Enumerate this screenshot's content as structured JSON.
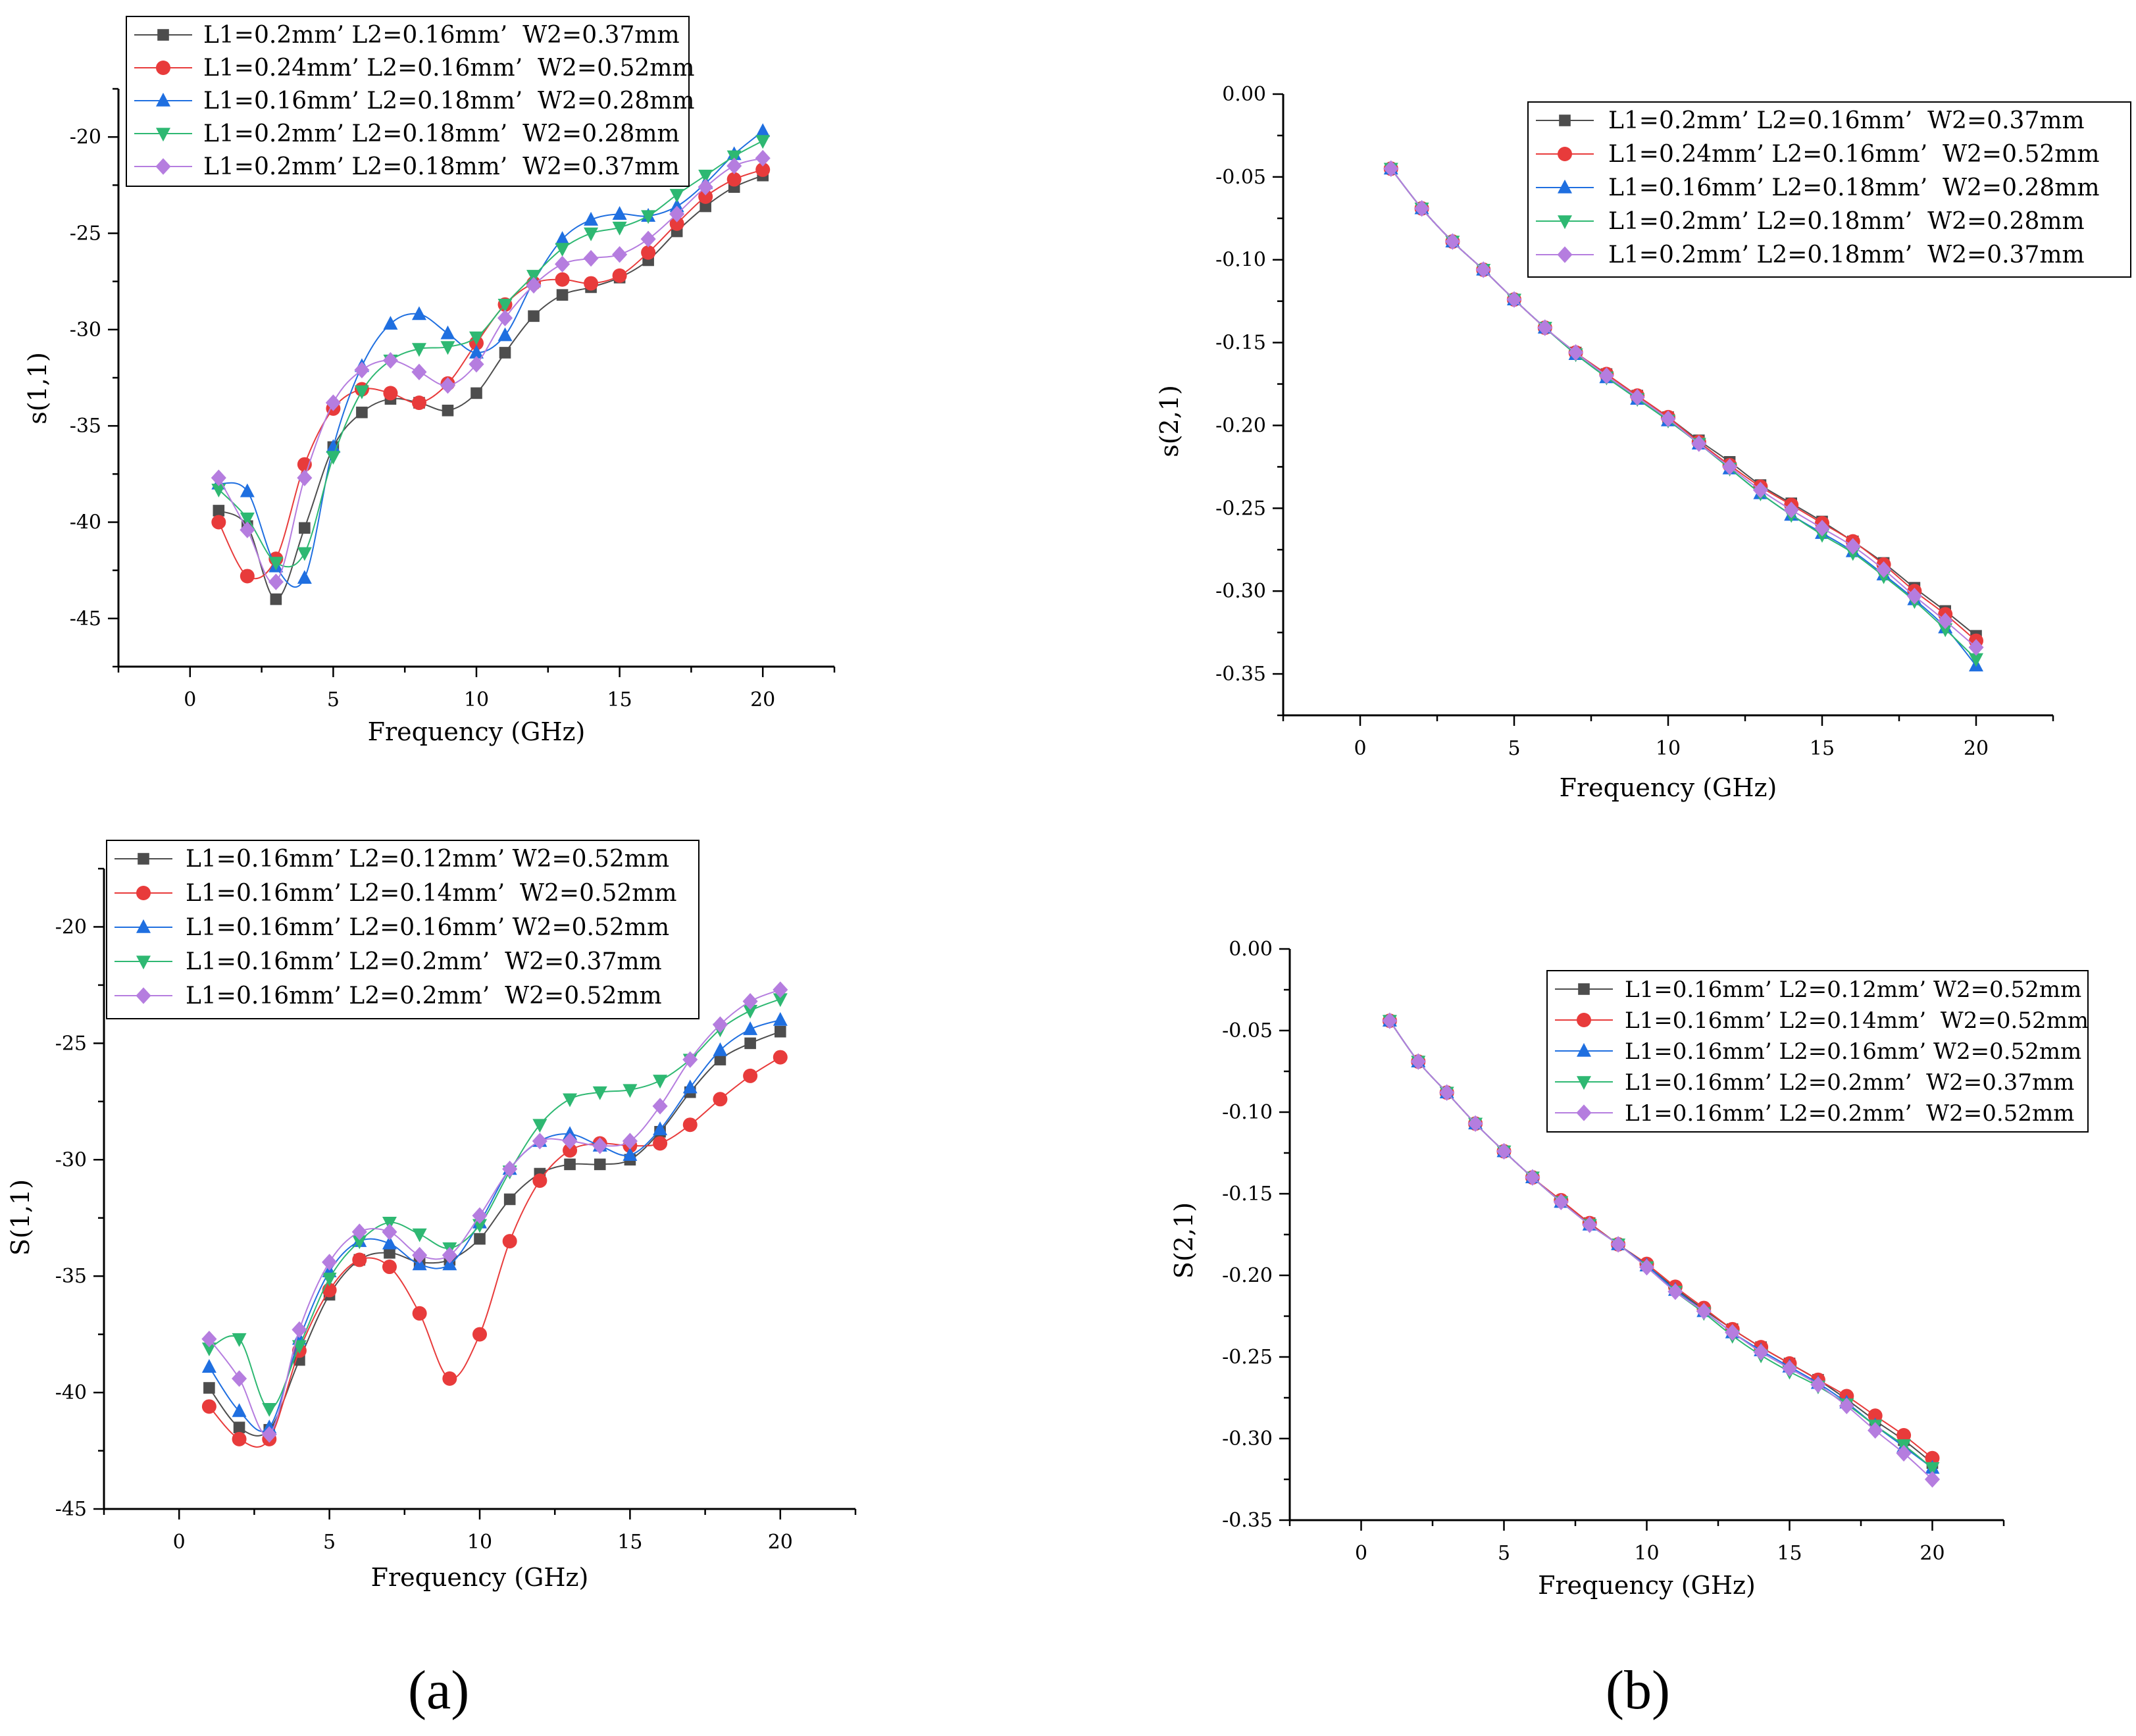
{
  "figure": {
    "label_a": "(a)",
    "label_b": "(b)"
  },
  "chart_data": [
    {
      "type": "line",
      "xlabel": "Frequency (GHz)",
      "ylabel": "s(1,1)",
      "xlim": [
        -2.5,
        22.5
      ],
      "ylim": [
        -47.5,
        -17.5
      ],
      "xticks": [
        0,
        5,
        10,
        15,
        20
      ],
      "yticks": [
        -45,
        -40,
        -35,
        -30,
        -25,
        -20
      ],
      "ytick_labels": [
        "-45",
        "-40",
        "-35",
        "-30",
        "-25",
        "-20"
      ],
      "legend_position": "top-left",
      "x": [
        1,
        2,
        3,
        4,
        5,
        6,
        7,
        8,
        9,
        10,
        11,
        12,
        13,
        14,
        15,
        16,
        17,
        18,
        19,
        20
      ],
      "series": [
        {
          "name": "L1=0.2mm’ L2=0.16mm’  W2=0.37mm",
          "color": "#4d4d4d",
          "marker": "square",
          "values": [
            -39.4,
            -40.2,
            -44.0,
            -40.3,
            -36.1,
            -34.3,
            -33.6,
            -33.8,
            -34.2,
            -33.3,
            -31.2,
            -29.3,
            -28.2,
            -27.8,
            -27.3,
            -26.4,
            -24.9,
            -23.6,
            -22.6,
            -22.0
          ]
        },
        {
          "name": "L1=0.24mm’ L2=0.16mm’  W2=0.52mm",
          "color": "#e83b3b",
          "marker": "circle",
          "values": [
            -40.0,
            -42.8,
            -41.9,
            -37.0,
            -34.1,
            -33.1,
            -33.3,
            -33.8,
            -32.8,
            -30.7,
            -28.7,
            -27.6,
            -27.4,
            -27.6,
            -27.2,
            -26.0,
            -24.5,
            -23.1,
            -22.2,
            -21.7
          ]
        },
        {
          "name": "L1=0.16mm’ L2=0.18mm’  W2=0.28mm",
          "color": "#1f6fe0",
          "marker": "triangle-up",
          "values": [
            -38.0,
            -38.4,
            -42.3,
            -42.9,
            -36.1,
            -31.9,
            -29.7,
            -29.2,
            -30.2,
            -31.2,
            -30.3,
            -27.5,
            -25.3,
            -24.3,
            -24.0,
            -24.1,
            -23.6,
            -22.4,
            -20.9,
            -19.7
          ]
        },
        {
          "name": "L1=0.2mm’ L2=0.18mm’  W2=0.28mm",
          "color": "#2eb872",
          "marker": "triangle-down",
          "values": [
            -38.3,
            -39.8,
            -42.1,
            -41.6,
            -36.6,
            -33.2,
            -31.6,
            -31.0,
            -30.9,
            -30.4,
            -28.7,
            -27.2,
            -25.8,
            -25.0,
            -24.7,
            -24.1,
            -23.0,
            -22.0,
            -21.0,
            -20.2
          ]
        },
        {
          "name": "L1=0.2mm’ L2=0.18mm’  W2=0.37mm",
          "color": "#b57ddf",
          "marker": "diamond",
          "values": [
            -37.7,
            -40.4,
            -43.1,
            -37.7,
            -33.8,
            -32.1,
            -31.6,
            -32.2,
            -32.9,
            -31.8,
            -29.4,
            -27.7,
            -26.6,
            -26.3,
            -26.1,
            -25.3,
            -24.0,
            -22.6,
            -21.5,
            -21.1
          ]
        }
      ]
    },
    {
      "type": "line",
      "xlabel": "Frequency (GHz)",
      "ylabel": "s(2,1)",
      "xlim": [
        -2.5,
        22.5
      ],
      "ylim": [
        -0.375,
        0.0
      ],
      "xticks": [
        0,
        5,
        10,
        15,
        20
      ],
      "yticks": [
        -0.35,
        -0.3,
        -0.25,
        -0.2,
        -0.15,
        -0.1,
        -0.05,
        0.0
      ],
      "ytick_labels": [
        "-0.35",
        "-0.30",
        "-0.25",
        "-0.20",
        "-0.15",
        "-0.10",
        "-0.05",
        "0.00"
      ],
      "legend_position": "top-right",
      "x": [
        1,
        2,
        3,
        4,
        5,
        6,
        7,
        8,
        9,
        10,
        11,
        12,
        13,
        14,
        15,
        16,
        17,
        18,
        19,
        20
      ],
      "series": [
        {
          "name": "L1=0.2mm’ L2=0.16mm’  W2=0.37mm",
          "color": "#4d4d4d",
          "marker": "square",
          "values": [
            -0.045,
            -0.069,
            -0.089,
            -0.106,
            -0.124,
            -0.141,
            -0.156,
            -0.169,
            -0.182,
            -0.195,
            -0.209,
            -0.222,
            -0.236,
            -0.247,
            -0.258,
            -0.27,
            -0.283,
            -0.298,
            -0.312,
            -0.327
          ]
        },
        {
          "name": "L1=0.24mm’ L2=0.16mm’  W2=0.52mm",
          "color": "#e83b3b",
          "marker": "circle",
          "values": [
            -0.045,
            -0.069,
            -0.089,
            -0.106,
            -0.124,
            -0.141,
            -0.156,
            -0.169,
            -0.182,
            -0.195,
            -0.21,
            -0.224,
            -0.237,
            -0.248,
            -0.259,
            -0.27,
            -0.284,
            -0.3,
            -0.314,
            -0.33
          ]
        },
        {
          "name": "L1=0.16mm’ L2=0.18mm’  W2=0.28mm",
          "color": "#1f6fe0",
          "marker": "triangle-up",
          "values": [
            -0.045,
            -0.069,
            -0.089,
            -0.106,
            -0.124,
            -0.141,
            -0.157,
            -0.171,
            -0.184,
            -0.197,
            -0.211,
            -0.226,
            -0.241,
            -0.254,
            -0.265,
            -0.276,
            -0.29,
            -0.305,
            -0.322,
            -0.345
          ]
        },
        {
          "name": "L1=0.2mm’ L2=0.18mm’  W2=0.28mm",
          "color": "#2eb872",
          "marker": "triangle-down",
          "values": [
            -0.045,
            -0.069,
            -0.089,
            -0.106,
            -0.124,
            -0.141,
            -0.157,
            -0.171,
            -0.184,
            -0.197,
            -0.211,
            -0.226,
            -0.241,
            -0.254,
            -0.266,
            -0.277,
            -0.291,
            -0.306,
            -0.323,
            -0.341
          ]
        },
        {
          "name": "L1=0.2mm’ L2=0.18mm’  W2=0.37mm",
          "color": "#b57ddf",
          "marker": "diamond",
          "values": [
            -0.045,
            -0.069,
            -0.089,
            -0.106,
            -0.124,
            -0.141,
            -0.156,
            -0.17,
            -0.183,
            -0.196,
            -0.211,
            -0.225,
            -0.239,
            -0.251,
            -0.262,
            -0.273,
            -0.287,
            -0.303,
            -0.318,
            -0.334
          ]
        }
      ]
    },
    {
      "type": "line",
      "xlabel": "Frequency (GHz)",
      "ylabel": "S(1,1)",
      "xlim": [
        -2.5,
        22.5
      ],
      "ylim": [
        -45.0,
        -17.5
      ],
      "xticks": [
        0,
        5,
        10,
        15,
        20
      ],
      "yticks": [
        -45,
        -40,
        -35,
        -30,
        -25,
        -20
      ],
      "ytick_labels": [
        "-45",
        "-40",
        "-35",
        "-30",
        "-25",
        "-20"
      ],
      "legend_position": "top-left",
      "x": [
        1,
        2,
        3,
        4,
        5,
        6,
        7,
        8,
        9,
        10,
        11,
        12,
        13,
        14,
        15,
        16,
        17,
        18,
        19,
        20
      ],
      "series": [
        {
          "name": "L1=0.16mm’ L2=0.12mm’ W2=0.52mm",
          "color": "#4d4d4d",
          "marker": "square",
          "values": [
            -39.8,
            -41.5,
            -41.6,
            -38.6,
            -35.8,
            -34.3,
            -34.0,
            -34.4,
            -34.3,
            -33.4,
            -31.7,
            -30.6,
            -30.2,
            -30.2,
            -30.0,
            -28.8,
            -27.1,
            -25.7,
            -25.0,
            -24.5
          ]
        },
        {
          "name": "L1=0.16mm’ L2=0.14mm’  W2=0.52mm",
          "color": "#e83b3b",
          "marker": "circle",
          "values": [
            -40.6,
            -42.0,
            -42.0,
            -38.2,
            -35.6,
            -34.3,
            -34.6,
            -36.6,
            -39.4,
            -37.5,
            -33.5,
            -30.9,
            -29.6,
            -29.3,
            -29.4,
            -29.3,
            -28.5,
            -27.4,
            -26.4,
            -25.6
          ]
        },
        {
          "name": "L1=0.16mm’ L2=0.16mm’ W2=0.52mm",
          "color": "#1f6fe0",
          "marker": "triangle-up",
          "values": [
            -38.9,
            -40.8,
            -41.5,
            -37.7,
            -34.8,
            -33.5,
            -33.6,
            -34.5,
            -34.5,
            -32.7,
            -30.4,
            -29.2,
            -28.9,
            -29.4,
            -29.8,
            -28.7,
            -26.9,
            -25.3,
            -24.4,
            -24.0
          ]
        },
        {
          "name": "L1=0.16mm’ L2=0.2mm’  W2=0.37mm",
          "color": "#2eb872",
          "marker": "triangle-down",
          "values": [
            -38.1,
            -37.7,
            -40.7,
            -38.0,
            -35.1,
            -33.5,
            -32.7,
            -33.2,
            -33.8,
            -32.8,
            -30.5,
            -28.5,
            -27.4,
            -27.1,
            -27.0,
            -26.6,
            -25.7,
            -24.4,
            -23.6,
            -23.1
          ]
        },
        {
          "name": "L1=0.16mm’ L2=0.2mm’  W2=0.52mm",
          "color": "#b57ddf",
          "marker": "diamond",
          "values": [
            -37.7,
            -39.4,
            -41.8,
            -37.3,
            -34.4,
            -33.1,
            -33.1,
            -34.1,
            -34.1,
            -32.4,
            -30.4,
            -29.2,
            -29.2,
            -29.4,
            -29.2,
            -27.7,
            -25.7,
            -24.2,
            -23.2,
            -22.7
          ]
        }
      ]
    },
    {
      "type": "line",
      "xlabel": "Frequency (GHz)",
      "ylabel": "S(2,1)",
      "xlim": [
        -2.5,
        22.5
      ],
      "ylim": [
        -0.35,
        0.0
      ],
      "xticks": [
        0,
        5,
        10,
        15,
        20
      ],
      "yticks": [
        -0.35,
        -0.3,
        -0.25,
        -0.2,
        -0.15,
        -0.1,
        -0.05,
        0.0
      ],
      "ytick_labels": [
        "-0.35",
        "-0.30",
        "-0.25",
        "-0.20",
        "-0.15",
        "-0.10",
        "-0.05",
        "0.00"
      ],
      "legend_position": "top-right",
      "x": [
        1,
        2,
        3,
        4,
        5,
        6,
        7,
        8,
        9,
        10,
        11,
        12,
        13,
        14,
        15,
        16,
        17,
        18,
        19,
        20
      ],
      "series": [
        {
          "name": "L1=0.16mm’ L2=0.12mm’ W2=0.52mm",
          "color": "#4d4d4d",
          "marker": "square",
          "values": [
            -0.044,
            -0.069,
            -0.088,
            -0.107,
            -0.124,
            -0.14,
            -0.155,
            -0.168,
            -0.181,
            -0.194,
            -0.208,
            -0.221,
            -0.233,
            -0.244,
            -0.254,
            -0.264,
            -0.276,
            -0.289,
            -0.301,
            -0.315
          ]
        },
        {
          "name": "L1=0.16mm’ L2=0.14mm’  W2=0.52mm",
          "color": "#e83b3b",
          "marker": "circle",
          "values": [
            -0.044,
            -0.069,
            -0.088,
            -0.107,
            -0.124,
            -0.14,
            -0.154,
            -0.168,
            -0.181,
            -0.193,
            -0.207,
            -0.22,
            -0.233,
            -0.244,
            -0.254,
            -0.264,
            -0.274,
            -0.286,
            -0.298,
            -0.312
          ]
        },
        {
          "name": "L1=0.16mm’ L2=0.16mm’ W2=0.52mm",
          "color": "#1f6fe0",
          "marker": "triangle-up",
          "values": [
            -0.044,
            -0.069,
            -0.088,
            -0.107,
            -0.124,
            -0.14,
            -0.155,
            -0.169,
            -0.181,
            -0.194,
            -0.209,
            -0.222,
            -0.235,
            -0.246,
            -0.256,
            -0.266,
            -0.278,
            -0.292,
            -0.305,
            -0.318
          ]
        },
        {
          "name": "L1=0.16mm’ L2=0.2mm’  W2=0.37mm",
          "color": "#2eb872",
          "marker": "triangle-down",
          "values": [
            -0.044,
            -0.069,
            -0.088,
            -0.107,
            -0.124,
            -0.14,
            -0.155,
            -0.169,
            -0.181,
            -0.195,
            -0.21,
            -0.223,
            -0.237,
            -0.249,
            -0.259,
            -0.268,
            -0.279,
            -0.292,
            -0.304,
            -0.318
          ]
        },
        {
          "name": "L1=0.16mm’ L2=0.2mm’  W2=0.52mm",
          "color": "#b57ddf",
          "marker": "diamond",
          "values": [
            -0.044,
            -0.069,
            -0.088,
            -0.107,
            -0.124,
            -0.14,
            -0.155,
            -0.169,
            -0.181,
            -0.195,
            -0.21,
            -0.222,
            -0.235,
            -0.247,
            -0.257,
            -0.267,
            -0.28,
            -0.295,
            -0.309,
            -0.325
          ]
        }
      ]
    }
  ]
}
